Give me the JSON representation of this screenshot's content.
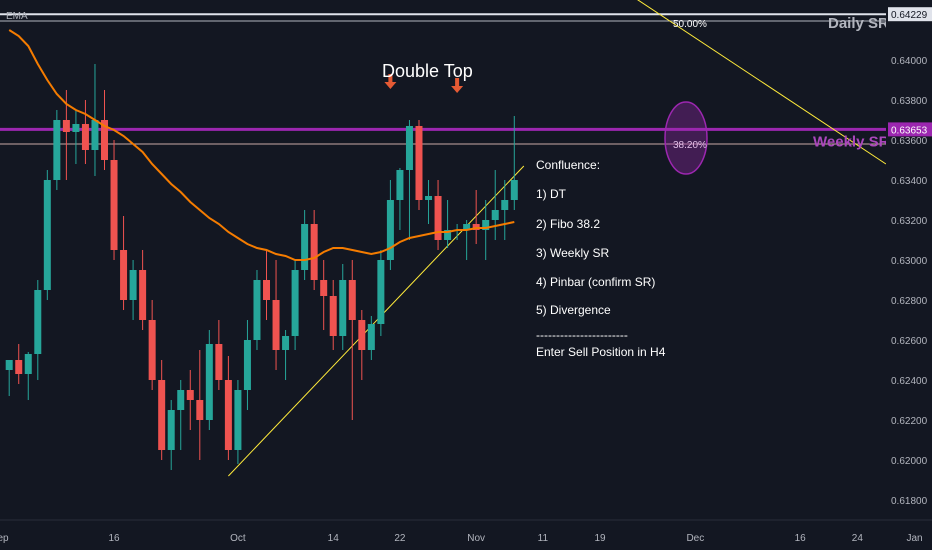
{
  "indicator_label": "EMA",
  "chart_data": {
    "type": "candlestick",
    "symbol_legend": "EMA",
    "y_range": [
      0.617,
      0.643
    ],
    "y_ticks": [
      0.64229,
      0.64,
      0.638,
      0.63653,
      0.636,
      0.634,
      0.632,
      0.63,
      0.628,
      0.626,
      0.624,
      0.622,
      0.62,
      0.618
    ],
    "y_tick_labels": [
      "0.64229",
      "0.64000",
      "0.63800",
      "0.63653",
      "0.63600",
      "0.63400",
      "0.63200",
      "0.63000",
      "0.62800",
      "0.62600",
      "0.62400",
      "0.62200",
      "0.62000",
      "0.61800"
    ],
    "x_ticks": [
      {
        "label": "Sep",
        "index": -1
      },
      {
        "label": "16",
        "index": 11
      },
      {
        "label": "Oct",
        "index": 24
      },
      {
        "label": "14",
        "index": 34
      },
      {
        "label": "22",
        "index": 41
      },
      {
        "label": "Nov",
        "index": 49
      },
      {
        "label": "11",
        "index": 56
      },
      {
        "label": "19",
        "index": 62
      },
      {
        "label": "Dec",
        "index": 72
      },
      {
        "label": "16",
        "index": 83
      },
      {
        "label": "24",
        "index": 89
      },
      {
        "label": "Jan",
        "index": 95
      }
    ],
    "candles": [
      [
        0.6245,
        0.625,
        0.6232,
        0.625
      ],
      [
        0.625,
        0.6258,
        0.6238,
        0.6243
      ],
      [
        0.6243,
        0.6254,
        0.623,
        0.6253
      ],
      [
        0.6253,
        0.629,
        0.624,
        0.6285
      ],
      [
        0.6285,
        0.6345,
        0.628,
        0.634
      ],
      [
        0.634,
        0.6375,
        0.6335,
        0.637
      ],
      [
        0.637,
        0.6385,
        0.634,
        0.6364
      ],
      [
        0.6364,
        0.6375,
        0.6348,
        0.6368
      ],
      [
        0.6368,
        0.638,
        0.6348,
        0.6355
      ],
      [
        0.6355,
        0.6398,
        0.6342,
        0.637
      ],
      [
        0.637,
        0.6385,
        0.6345,
        0.635
      ],
      [
        0.635,
        0.636,
        0.63,
        0.6305
      ],
      [
        0.6305,
        0.6322,
        0.6275,
        0.628
      ],
      [
        0.628,
        0.63,
        0.627,
        0.6295
      ],
      [
        0.6295,
        0.6305,
        0.6265,
        0.627
      ],
      [
        0.627,
        0.628,
        0.6235,
        0.624
      ],
      [
        0.624,
        0.625,
        0.62,
        0.6205
      ],
      [
        0.6205,
        0.623,
        0.6195,
        0.6225
      ],
      [
        0.6225,
        0.624,
        0.6205,
        0.6235
      ],
      [
        0.6235,
        0.6245,
        0.6215,
        0.623
      ],
      [
        0.623,
        0.6255,
        0.62,
        0.622
      ],
      [
        0.622,
        0.6265,
        0.6215,
        0.6258
      ],
      [
        0.6258,
        0.627,
        0.6235,
        0.624
      ],
      [
        0.624,
        0.6252,
        0.62,
        0.6205
      ],
      [
        0.6205,
        0.624,
        0.6198,
        0.6235
      ],
      [
        0.6235,
        0.627,
        0.6225,
        0.626
      ],
      [
        0.626,
        0.6295,
        0.6255,
        0.629
      ],
      [
        0.629,
        0.6305,
        0.627,
        0.628
      ],
      [
        0.628,
        0.63,
        0.6245,
        0.6255
      ],
      [
        0.6255,
        0.6265,
        0.624,
        0.6262
      ],
      [
        0.6262,
        0.63,
        0.6255,
        0.6295
      ],
      [
        0.6295,
        0.6325,
        0.629,
        0.6318
      ],
      [
        0.6318,
        0.6325,
        0.6285,
        0.629
      ],
      [
        0.629,
        0.63,
        0.6265,
        0.6282
      ],
      [
        0.6282,
        0.629,
        0.6255,
        0.6262
      ],
      [
        0.6262,
        0.6298,
        0.6255,
        0.629
      ],
      [
        0.629,
        0.63,
        0.622,
        0.627
      ],
      [
        0.627,
        0.6275,
        0.624,
        0.6255
      ],
      [
        0.6255,
        0.6272,
        0.625,
        0.6268
      ],
      [
        0.6268,
        0.6305,
        0.6262,
        0.63
      ],
      [
        0.63,
        0.634,
        0.6295,
        0.633
      ],
      [
        0.633,
        0.6346,
        0.6315,
        0.6345
      ],
      [
        0.6345,
        0.637,
        0.631,
        0.6367
      ],
      [
        0.6367,
        0.637,
        0.6325,
        0.633
      ],
      [
        0.633,
        0.634,
        0.6318,
        0.6332
      ],
      [
        0.6332,
        0.634,
        0.6305,
        0.631
      ],
      [
        0.631,
        0.633,
        0.6306,
        0.6315
      ],
      [
        0.6315,
        0.6318,
        0.631,
        0.6315
      ],
      [
        0.6315,
        0.632,
        0.63,
        0.6318
      ],
      [
        0.6318,
        0.6335,
        0.6308,
        0.6315
      ],
      [
        0.6315,
        0.633,
        0.63,
        0.632
      ],
      [
        0.632,
        0.6345,
        0.631,
        0.6325
      ],
      [
        0.6325,
        0.634,
        0.631,
        0.633
      ],
      [
        0.633,
        0.6372,
        0.6325,
        0.634
      ]
    ],
    "ema": [
      0.6415,
      0.6412,
      0.6407,
      0.6398,
      0.639,
      0.6383,
      0.6378,
      0.6375,
      0.6373,
      0.637,
      0.6367,
      0.6365,
      0.6362,
      0.6358,
      0.6354,
      0.6348,
      0.6343,
      0.6338,
      0.6334,
      0.6329,
      0.6325,
      0.6321,
      0.6318,
      0.6314,
      0.6311,
      0.6308,
      0.6306,
      0.6305,
      0.6303,
      0.6302,
      0.63,
      0.63,
      0.6301,
      0.6304,
      0.6306,
      0.6306,
      0.6305,
      0.6304,
      0.6303,
      0.6304,
      0.6306,
      0.6309,
      0.6311,
      0.6312,
      0.6313,
      0.6314,
      0.6314,
      0.6315,
      0.6315,
      0.6316,
      0.6316,
      0.6317,
      0.6318,
      0.6319
    ],
    "bar_spacing": 9.53,
    "bar_offset": 9.2,
    "horizontal_lines": [
      {
        "name": "daily-sr",
        "value": 0.64229,
        "label": "Daily SR",
        "color": "#e0e3eb"
      },
      {
        "name": "fibo-50",
        "value": 0.64195,
        "label": "50.00%",
        "color": "#b2b5be"
      },
      {
        "name": "weekly-sr",
        "value": 0.63653,
        "label": "Weekly SR",
        "color": "#9c27b0"
      },
      {
        "name": "fibo-38",
        "value": 0.6358,
        "label": "38.20%",
        "color": "#c9a9a6"
      }
    ],
    "trendlines": [
      {
        "name": "support-trendline",
        "from": [
          23,
          0.6192
        ],
        "to": [
          54,
          0.6347
        ],
        "color": "#ffeb3b"
      },
      {
        "name": "downtrend-line",
        "from": [
          59,
          0.6452
        ],
        "to": [
          92,
          0.6348
        ],
        "color": "#ffeb3b"
      }
    ],
    "arrows": [
      {
        "index": 40,
        "value": 0.6387
      },
      {
        "index": 47,
        "value": 0.6385
      }
    ],
    "annotations": {
      "double_top": "Double Top",
      "confluence_title": "Confluence:",
      "confluence_items": [
        "1) DT",
        "2) Fibo 38.2",
        "3) Weekly SR",
        "4) Pinbar (confirm SR)",
        "5) Divergence"
      ],
      "separator": "-----------------------",
      "action": "Enter Sell Position in H4"
    },
    "colors": {
      "up": "#26a69a",
      "down": "#ef5350",
      "ema": "#f57c00",
      "background": "#131722",
      "arrow": "#e55a34",
      "circle": "#9c27b0"
    }
  }
}
